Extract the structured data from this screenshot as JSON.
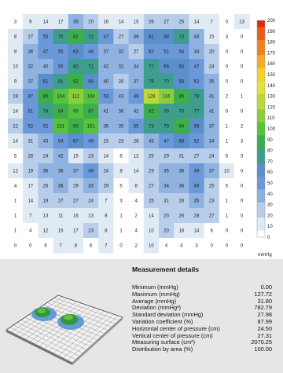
{
  "chart_data": {
    "type": "heatmap",
    "values": [
      [
        3,
        9,
        14,
        17,
        38,
        20,
        16,
        14,
        15,
        26,
        27,
        25,
        14,
        7,
        0,
        13
      ],
      [
        8,
        27,
        55,
        75,
        82,
        72,
        47,
        27,
        39,
        61,
        58,
        73,
        43,
        15,
        3,
        0
      ],
      [
        8,
        36,
        47,
        55,
        63,
        48,
        37,
        32,
        27,
        52,
        51,
        54,
        34,
        20,
        0,
        0
      ],
      [
        10,
        32,
        40,
        50,
        80,
        71,
        42,
        32,
        34,
        72,
        66,
        65,
        47,
        24,
        0,
        0
      ],
      [
        9,
        37,
        61,
        81,
        92,
        64,
        40,
        28,
        37,
        79,
        70,
        68,
        52,
        35,
        0,
        0
      ],
      [
        19,
        47,
        85,
        104,
        112,
        104,
        53,
        43,
        49,
        128,
        116,
        85,
        78,
        41,
        2,
        1
      ],
      [
        14,
        51,
        74,
        84,
        99,
        87,
        41,
        36,
        42,
        82,
        78,
        70,
        77,
        41,
        0,
        0
      ],
      [
        22,
        52,
        52,
        101,
        93,
        101,
        35,
        35,
        55,
        73,
        79,
        84,
        59,
        37,
        1,
        2
      ],
      [
        14,
        31,
        43,
        54,
        67,
        49,
        23,
        23,
        28,
        43,
        47,
        68,
        52,
        34,
        1,
        3
      ],
      [
        5,
        28,
        24,
        42,
        15,
        23,
        14,
        6,
        12,
        25,
        29,
        31,
        27,
        24,
        5,
        3
      ],
      [
        12,
        19,
        36,
        36,
        37,
        49,
        24,
        8,
        14,
        29,
        35,
        36,
        49,
        37,
        10,
        0
      ],
      [
        4,
        17,
        26,
        36,
        29,
        33,
        19,
        5,
        8,
        27,
        34,
        36,
        49,
        25,
        5,
        0
      ],
      [
        1,
        14,
        19,
        27,
        27,
        24,
        7,
        3,
        4,
        25,
        31,
        28,
        35,
        23,
        1,
        0
      ],
      [
        1,
        7,
        13,
        11,
        16,
        13,
        8,
        1,
        2,
        14,
        20,
        26,
        28,
        27,
        1,
        0
      ],
      [
        1,
        4,
        12,
        15,
        17,
        23,
        8,
        1,
        4,
        10,
        20,
        18,
        14,
        6,
        0,
        0
      ],
      [
        0,
        0,
        6,
        7,
        8,
        6,
        7,
        0,
        2,
        10,
        4,
        4,
        3,
        0,
        0,
        0
      ]
    ],
    "zlim": [
      0,
      200
    ],
    "colorbar_ticks": [
      0,
      10,
      20,
      30,
      40,
      50,
      60,
      70,
      80,
      90,
      100,
      110,
      120,
      130,
      140,
      150,
      160,
      170,
      180,
      190,
      200
    ],
    "colorbar_unit": "mmHg",
    "colors": [
      "#ffffff",
      "#dfeaf5",
      "#b7cdea",
      "#8fb2e0",
      "#6a98d8",
      "#5a8fcb",
      "#3e9e8c",
      "#3cae4c",
      "#56c23e",
      "#8ace3c",
      "#bcd83a",
      "#e1e33a",
      "#f5d12e",
      "#f2ac26",
      "#ec8520",
      "#e65a1a",
      "#de2a14"
    ]
  },
  "details": {
    "title": "Measurement details",
    "rows": [
      {
        "label": "Minimum (mmHg)",
        "value": "0.00"
      },
      {
        "label": "Maximum (mmHg)",
        "value": "127.72"
      },
      {
        "label": "Average (mmHg)",
        "value": "31.80"
      },
      {
        "label": "Deviation (mmHg²)",
        "value": "782.79"
      },
      {
        "label": "Standard deviation (mmHg)",
        "value": "27.98"
      },
      {
        "label": "Variation coefficient (%)",
        "value": "87.99"
      },
      {
        "label": "Horizontal center of pressure (cm)",
        "value": "24.50"
      },
      {
        "label": "Vertical center of pressure (cm)",
        "value": "27.31"
      },
      {
        "label": "Measuring surface (cm²)",
        "value": "2070.25"
      },
      {
        "label": "Distribution by area (%)",
        "value": "100.00"
      }
    ]
  }
}
